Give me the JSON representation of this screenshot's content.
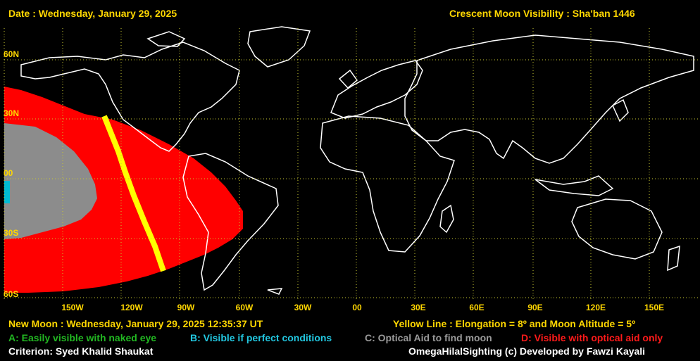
{
  "header": {
    "date": "Date : Wednesday, January 29, 2025",
    "title": "Crescent Moon Visibility : Sha'ban  1446"
  },
  "axes": {
    "lat_labels": [
      "60N",
      "30N",
      "00",
      "30S",
      "60S"
    ],
    "lon_labels": [
      "150W",
      "120W",
      "90W",
      "60W",
      "30W",
      "00",
      "30E",
      "60E",
      "90E",
      "120E",
      "150E"
    ]
  },
  "footer": {
    "new_moon": "New Moon : Wednesday, January 29, 2025  12:35:37  UT",
    "yellow_line": "Yellow Line : Elongation = 8º  and Moon Altitude = 5º",
    "legend_a": "A: Easily visible with naked eye",
    "legend_b": "B: Visible if perfect conditions",
    "legend_c": "C: Optical Aid to find moon",
    "legend_d": "D: Visible with optical aid only",
    "criterion": "Criterion: Syed Khalid Shaukat",
    "credit": "OmegaHilalSighting  (c)  Developed by Fawzi Kayali"
  },
  "colors": {
    "zone_a": "#22b722",
    "zone_b": "#00bcd4",
    "zone_c": "#8c8c8c",
    "zone_d": "#ff0000",
    "limit_line": "#ffff00",
    "grid": "#c8c832",
    "coast": "#ffffff"
  }
}
